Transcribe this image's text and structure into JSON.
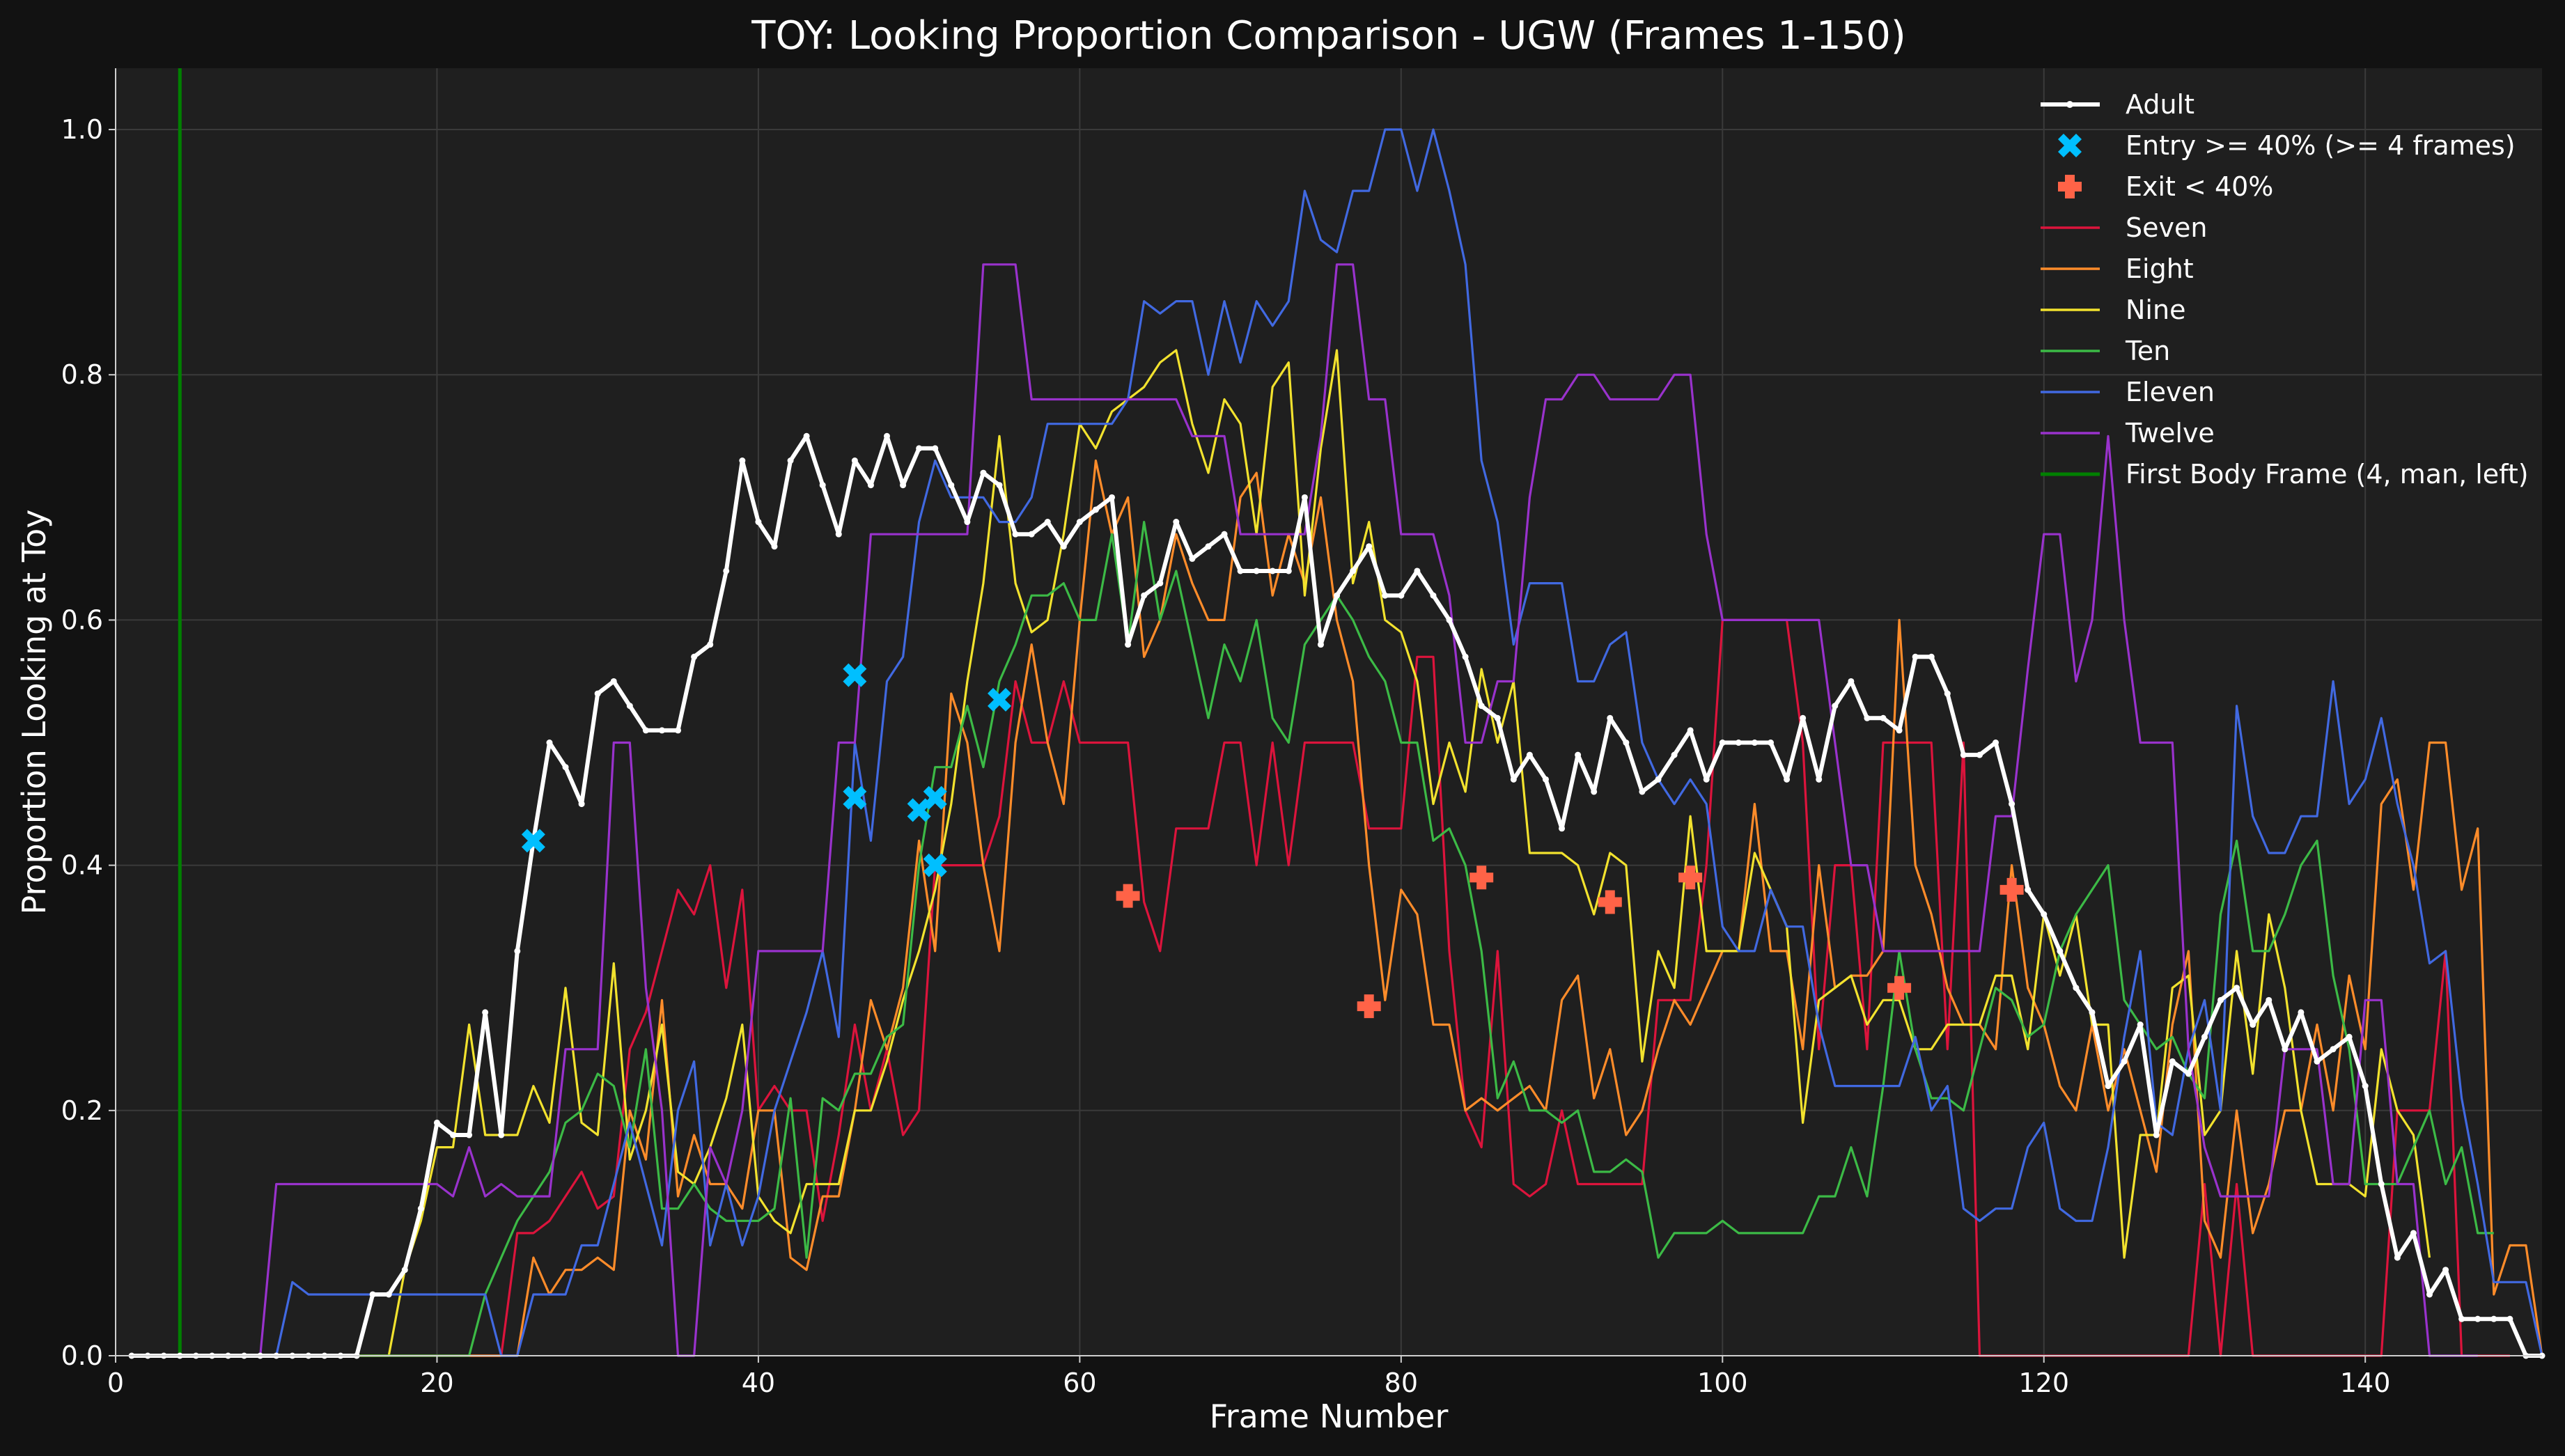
{
  "chart_data": {
    "type": "line",
    "title": "TOY: Looking Proportion Comparison - UGW (Frames 1-150)",
    "xlabel": "Frame Number",
    "ylabel": "Proportion Looking at Toy",
    "xlim": [
      0,
      151
    ],
    "ylim": [
      0,
      1.05
    ],
    "xticks": [
      0,
      20,
      40,
      60,
      80,
      100,
      120,
      140
    ],
    "yticks": [
      0.0,
      0.2,
      0.4,
      0.6,
      0.8,
      1.0
    ],
    "xtick_labels": [
      "0",
      "20",
      "40",
      "60",
      "80",
      "100",
      "120",
      "140"
    ],
    "ytick_labels": [
      "0.0",
      "0.2",
      "0.4",
      "0.6",
      "0.8",
      "1.0"
    ],
    "grid": true,
    "legend_position": "top-right",
    "background_color": "#1f1f1f",
    "figure_color": "#121212",
    "first_body_frame": {
      "name": "First Body Frame (4, man, left)",
      "x": 4,
      "color": "#008000"
    },
    "series": [
      {
        "name": "Seven",
        "color": "#dc143c",
        "x_start": 1,
        "values": [
          0,
          0,
          0,
          0,
          0,
          0,
          0,
          0,
          0,
          0,
          0,
          0,
          0,
          0,
          0,
          0,
          0,
          0,
          0,
          0,
          0,
          0,
          0,
          0,
          0.1,
          0.1,
          0.11,
          0.13,
          0.15,
          0.12,
          0.13,
          0.25,
          0.28,
          0.33,
          0.38,
          0.36,
          0.4,
          0.3,
          0.38,
          0.2,
          0.22,
          0.2,
          0.2,
          0.11,
          0.18,
          0.27,
          0.2,
          0.25,
          0.18,
          0.2,
          0.4,
          0.4,
          0.4,
          0.4,
          0.44,
          0.55,
          0.5,
          0.5,
          0.55,
          0.5,
          0.5,
          0.5,
          0.5,
          0.37,
          0.33,
          0.43,
          0.43,
          0.43,
          0.5,
          0.5,
          0.4,
          0.5,
          0.4,
          0.5,
          0.5,
          0.5,
          0.5,
          0.43,
          0.43,
          0.43,
          0.57,
          0.57,
          0.33,
          0.2,
          0.17,
          0.33,
          0.14,
          0.13,
          0.14,
          0.2,
          0.14,
          0.14,
          0.14,
          0.14,
          0.14,
          0.29,
          0.29,
          0.29,
          0.4,
          0.6,
          0.6,
          0.6,
          0.6,
          0.6,
          0.5,
          0.25,
          0.4,
          0.4,
          0.25,
          0.5,
          0.5,
          0.5,
          0.5,
          0.25,
          0.5,
          0,
          0,
          0,
          0,
          0,
          0,
          0,
          0,
          0,
          0,
          0,
          0,
          0,
          0,
          0.14,
          0,
          0.14,
          0,
          0,
          0,
          0,
          0,
          0,
          0,
          0,
          0,
          0.2,
          0.2,
          0.2,
          0.33,
          0,
          0,
          0,
          0
        ]
      },
      {
        "name": "Eight",
        "color": "#ff8c2a",
        "x_start": 1,
        "values": [
          0,
          0,
          0,
          0,
          0,
          0,
          0,
          0,
          0,
          0,
          0,
          0,
          0,
          0,
          0,
          0,
          0,
          0,
          0,
          0,
          0,
          0,
          0,
          0,
          0,
          0.08,
          0.05,
          0.07,
          0.07,
          0.08,
          0.07,
          0.2,
          0.16,
          0.29,
          0.13,
          0.18,
          0.14,
          0.14,
          0.12,
          0.2,
          0.2,
          0.08,
          0.07,
          0.13,
          0.13,
          0.2,
          0.29,
          0.25,
          0.3,
          0.42,
          0.33,
          0.54,
          0.5,
          0.4,
          0.33,
          0.5,
          0.58,
          0.5,
          0.45,
          0.6,
          0.73,
          0.67,
          0.7,
          0.57,
          0.6,
          0.67,
          0.63,
          0.6,
          0.6,
          0.7,
          0.72,
          0.62,
          0.67,
          0.63,
          0.7,
          0.6,
          0.55,
          0.4,
          0.29,
          0.38,
          0.36,
          0.27,
          0.27,
          0.2,
          0.21,
          0.2,
          0.21,
          0.22,
          0.2,
          0.29,
          0.31,
          0.21,
          0.25,
          0.18,
          0.2,
          0.25,
          0.29,
          0.27,
          0.3,
          0.33,
          0.33,
          0.45,
          0.33,
          0.33,
          0.25,
          0.4,
          0.3,
          0.31,
          0.31,
          0.33,
          0.6,
          0.4,
          0.36,
          0.3,
          0.27,
          0.27,
          0.25,
          0.4,
          0.3,
          0.27,
          0.22,
          0.2,
          0.27,
          0.2,
          0.25,
          0.2,
          0.15,
          0.27,
          0.33,
          0.11,
          0.08,
          0.2,
          0.1,
          0.14,
          0.2,
          0.2,
          0.27,
          0.2,
          0.31,
          0.25,
          0.45,
          0.47,
          0.38,
          0.5,
          0.5,
          0.38,
          0.43,
          0.05,
          0.09,
          0.09,
          0
        ]
      },
      {
        "name": "Nine",
        "color": "#f2e22e",
        "x_start": 1,
        "values": [
          0,
          0,
          0,
          0,
          0,
          0,
          0,
          0,
          0,
          0,
          0,
          0,
          0,
          0,
          0,
          0,
          0,
          0.07,
          0.11,
          0.17,
          0.17,
          0.27,
          0.18,
          0.18,
          0.18,
          0.22,
          0.19,
          0.3,
          0.19,
          0.18,
          0.32,
          0.16,
          0.2,
          0.27,
          0.15,
          0.14,
          0.17,
          0.21,
          0.27,
          0.13,
          0.11,
          0.1,
          0.14,
          0.14,
          0.14,
          0.2,
          0.2,
          0.24,
          0.29,
          0.33,
          0.38,
          0.45,
          0.55,
          0.63,
          0.75,
          0.63,
          0.59,
          0.6,
          0.67,
          0.76,
          0.74,
          0.77,
          0.78,
          0.79,
          0.81,
          0.82,
          0.76,
          0.72,
          0.78,
          0.76,
          0.67,
          0.79,
          0.81,
          0.62,
          0.74,
          0.82,
          0.63,
          0.68,
          0.6,
          0.59,
          0.55,
          0.45,
          0.5,
          0.46,
          0.56,
          0.5,
          0.55,
          0.41,
          0.41,
          0.41,
          0.4,
          0.36,
          0.41,
          0.4,
          0.24,
          0.33,
          0.3,
          0.44,
          0.33,
          0.33,
          0.33,
          0.41,
          0.38,
          0.35,
          0.19,
          0.29,
          0.3,
          0.31,
          0.27,
          0.29,
          0.29,
          0.25,
          0.25,
          0.27,
          0.27,
          0.27,
          0.31,
          0.31,
          0.25,
          0.36,
          0.31,
          0.36,
          0.27,
          0.27,
          0.08,
          0.18,
          0.18,
          0.3,
          0.31,
          0.18,
          0.2,
          0.33,
          0.23,
          0.36,
          0.3,
          0.2,
          0.14,
          0.14,
          0.14,
          0.13,
          0.25,
          0.2,
          0.18,
          0.08
        ]
      },
      {
        "name": "Ten",
        "color": "#3cba46",
        "x_start": 1,
        "values": [
          0,
          0,
          0,
          0,
          0,
          0,
          0,
          0,
          0,
          0,
          0,
          0,
          0,
          0,
          0,
          0,
          0,
          0,
          0,
          0,
          0,
          0,
          0.05,
          0.08,
          0.11,
          0.13,
          0.15,
          0.19,
          0.2,
          0.23,
          0.22,
          0.17,
          0.25,
          0.12,
          0.12,
          0.14,
          0.12,
          0.11,
          0.11,
          0.11,
          0.12,
          0.21,
          0.08,
          0.21,
          0.2,
          0.23,
          0.23,
          0.26,
          0.27,
          0.4,
          0.48,
          0.48,
          0.53,
          0.48,
          0.55,
          0.58,
          0.62,
          0.62,
          0.63,
          0.6,
          0.6,
          0.67,
          0.58,
          0.68,
          0.6,
          0.64,
          0.58,
          0.52,
          0.58,
          0.55,
          0.6,
          0.52,
          0.5,
          0.58,
          0.6,
          0.62,
          0.6,
          0.57,
          0.55,
          0.5,
          0.5,
          0.42,
          0.43,
          0.4,
          0.33,
          0.21,
          0.24,
          0.2,
          0.2,
          0.19,
          0.2,
          0.15,
          0.15,
          0.16,
          0.15,
          0.08,
          0.1,
          0.1,
          0.1,
          0.11,
          0.1,
          0.1,
          0.1,
          0.1,
          0.1,
          0.13,
          0.13,
          0.17,
          0.13,
          0.22,
          0.33,
          0.25,
          0.21,
          0.21,
          0.2,
          0.25,
          0.3,
          0.29,
          0.26,
          0.27,
          0.33,
          0.36,
          0.38,
          0.4,
          0.29,
          0.27,
          0.25,
          0.26,
          0.23,
          0.21,
          0.36,
          0.42,
          0.33,
          0.33,
          0.36,
          0.4,
          0.42,
          0.31,
          0.25,
          0.14,
          0.14,
          0.14,
          0.17,
          0.2,
          0.14,
          0.17,
          0.1,
          0.1
        ]
      },
      {
        "name": "Eleven",
        "color": "#4169e1",
        "x_start": 1,
        "values": [
          0,
          0,
          0,
          0,
          0,
          0,
          0,
          0,
          0,
          0,
          0.06,
          0.05,
          0.05,
          0.05,
          0.05,
          0.05,
          0.05,
          0.05,
          0.05,
          0.05,
          0.05,
          0.05,
          0.05,
          0,
          0,
          0.05,
          0.05,
          0.05,
          0.09,
          0.09,
          0.14,
          0.19,
          0.14,
          0.09,
          0.2,
          0.24,
          0.09,
          0.14,
          0.09,
          0.13,
          0.2,
          0.24,
          0.28,
          0.33,
          0.26,
          0.5,
          0.42,
          0.55,
          0.57,
          0.68,
          0.73,
          0.7,
          0.7,
          0.7,
          0.68,
          0.68,
          0.7,
          0.76,
          0.76,
          0.76,
          0.76,
          0.76,
          0.78,
          0.86,
          0.85,
          0.86,
          0.86,
          0.8,
          0.86,
          0.81,
          0.86,
          0.84,
          0.86,
          0.95,
          0.91,
          0.9,
          0.95,
          0.95,
          1.0,
          1.0,
          0.95,
          1.0,
          0.95,
          0.89,
          0.73,
          0.68,
          0.58,
          0.63,
          0.63,
          0.63,
          0.55,
          0.55,
          0.58,
          0.59,
          0.5,
          0.47,
          0.45,
          0.47,
          0.45,
          0.35,
          0.33,
          0.33,
          0.38,
          0.35,
          0.35,
          0.27,
          0.22,
          0.22,
          0.22,
          0.22,
          0.22,
          0.26,
          0.2,
          0.22,
          0.12,
          0.11,
          0.12,
          0.12,
          0.17,
          0.19,
          0.12,
          0.11,
          0.11,
          0.17,
          0.26,
          0.33,
          0.19,
          0.18,
          0.25,
          0.29,
          0.2,
          0.53,
          0.44,
          0.41,
          0.41,
          0.44,
          0.44,
          0.55,
          0.45,
          0.47,
          0.52,
          0.45,
          0.4,
          0.32,
          0.33,
          0.21,
          0.14,
          0.06,
          0.06,
          0.06,
          0
        ]
      },
      {
        "name": "Twelve",
        "color": "#9932cc",
        "x_start": 1,
        "values": [
          0,
          0,
          0,
          0,
          0,
          0,
          0,
          0,
          0,
          0.14,
          0.14,
          0.14,
          0.14,
          0.14,
          0.14,
          0.14,
          0.14,
          0.14,
          0.14,
          0.14,
          0.13,
          0.17,
          0.13,
          0.14,
          0.13,
          0.13,
          0.13,
          0.25,
          0.25,
          0.25,
          0.5,
          0.5,
          0.3,
          0.2,
          0,
          0,
          0.17,
          0.14,
          0.2,
          0.33,
          0.33,
          0.33,
          0.33,
          0.33,
          0.5,
          0.5,
          0.67,
          0.67,
          0.67,
          0.67,
          0.67,
          0.67,
          0.67,
          0.89,
          0.89,
          0.89,
          0.78,
          0.78,
          0.78,
          0.78,
          0.78,
          0.78,
          0.78,
          0.78,
          0.78,
          0.78,
          0.75,
          0.75,
          0.75,
          0.67,
          0.67,
          0.67,
          0.67,
          0.67,
          0.75,
          0.89,
          0.89,
          0.78,
          0.78,
          0.67,
          0.67,
          0.67,
          0.62,
          0.5,
          0.5,
          0.55,
          0.55,
          0.7,
          0.78,
          0.78,
          0.8,
          0.8,
          0.78,
          0.78,
          0.78,
          0.78,
          0.8,
          0.8,
          0.67,
          0.6,
          0.6,
          0.6,
          0.6,
          0.6,
          0.6,
          0.6,
          0.5,
          0.4,
          0.4,
          0.33,
          0.33,
          0.33,
          0.33,
          0.33,
          0.33,
          0.33,
          0.44,
          0.44,
          0.56,
          0.67,
          0.67,
          0.55,
          0.6,
          0.75,
          0.6,
          0.5,
          0.5,
          0.5,
          0.25,
          0.17,
          0.13,
          0.13,
          0.13,
          0.13,
          0.25,
          0.25,
          0.25,
          0.14,
          0.14,
          0.29,
          0.29,
          0.14,
          0.14,
          0,
          0,
          0,
          0
        ]
      },
      {
        "name": "Adult",
        "color": "#ffffff",
        "x_start": 1,
        "values": [
          0,
          0,
          0,
          0,
          0,
          0,
          0,
          0,
          0,
          0,
          0,
          0,
          0,
          0,
          0,
          0.05,
          0.05,
          0.07,
          0.12,
          0.19,
          0.18,
          0.18,
          0.28,
          0.18,
          0.33,
          0.42,
          0.5,
          0.48,
          0.45,
          0.54,
          0.55,
          0.53,
          0.51,
          0.51,
          0.51,
          0.57,
          0.58,
          0.64,
          0.73,
          0.68,
          0.66,
          0.73,
          0.75,
          0.71,
          0.67,
          0.73,
          0.71,
          0.75,
          0.71,
          0.74,
          0.74,
          0.71,
          0.68,
          0.72,
          0.71,
          0.67,
          0.67,
          0.68,
          0.66,
          0.68,
          0.69,
          0.7,
          0.58,
          0.62,
          0.63,
          0.68,
          0.65,
          0.66,
          0.67,
          0.64,
          0.64,
          0.64,
          0.64,
          0.7,
          0.58,
          0.62,
          0.64,
          0.66,
          0.62,
          0.62,
          0.64,
          0.62,
          0.6,
          0.57,
          0.53,
          0.52,
          0.47,
          0.49,
          0.47,
          0.43,
          0.49,
          0.46,
          0.52,
          0.5,
          0.46,
          0.47,
          0.49,
          0.51,
          0.47,
          0.5,
          0.5,
          0.5,
          0.5,
          0.47,
          0.52,
          0.47,
          0.53,
          0.55,
          0.52,
          0.52,
          0.51,
          0.57,
          0.57,
          0.54,
          0.49,
          0.49,
          0.5,
          0.45,
          0.38,
          0.36,
          0.33,
          0.3,
          0.28,
          0.22,
          0.24,
          0.27,
          0.18,
          0.24,
          0.23,
          0.26,
          0.29,
          0.3,
          0.27,
          0.29,
          0.25,
          0.28,
          0.24,
          0.25,
          0.26,
          0.22,
          0.14,
          0.08,
          0.1,
          0.05,
          0.07,
          0.03,
          0.03,
          0.03,
          0.03,
          0,
          0
        ]
      }
    ],
    "markers": [
      {
        "name": "Entry >= 40% (>= 4 frames)",
        "color": "#00bfff",
        "shape": "x",
        "points": [
          [
            26,
            0.42
          ],
          [
            46,
            0.555
          ],
          [
            46,
            0.455
          ],
          [
            50,
            0.445
          ],
          [
            51,
            0.455
          ],
          [
            51,
            0.4
          ],
          [
            55,
            0.535
          ]
        ]
      },
      {
        "name": "Exit < 40%",
        "color": "#ff6347",
        "shape": "plus",
        "points": [
          [
            63,
            0.375
          ],
          [
            78,
            0.285
          ],
          [
            85,
            0.39
          ],
          [
            93,
            0.37
          ],
          [
            98,
            0.39
          ],
          [
            111,
            0.3
          ],
          [
            118,
            0.38
          ]
        ]
      }
    ],
    "legend_order": [
      "Adult",
      "Entry >= 40% (>= 4 frames)",
      "Exit < 40%",
      "Seven",
      "Eight",
      "Nine",
      "Ten",
      "Eleven",
      "Twelve",
      "First Body Frame (4, man, left)"
    ]
  }
}
